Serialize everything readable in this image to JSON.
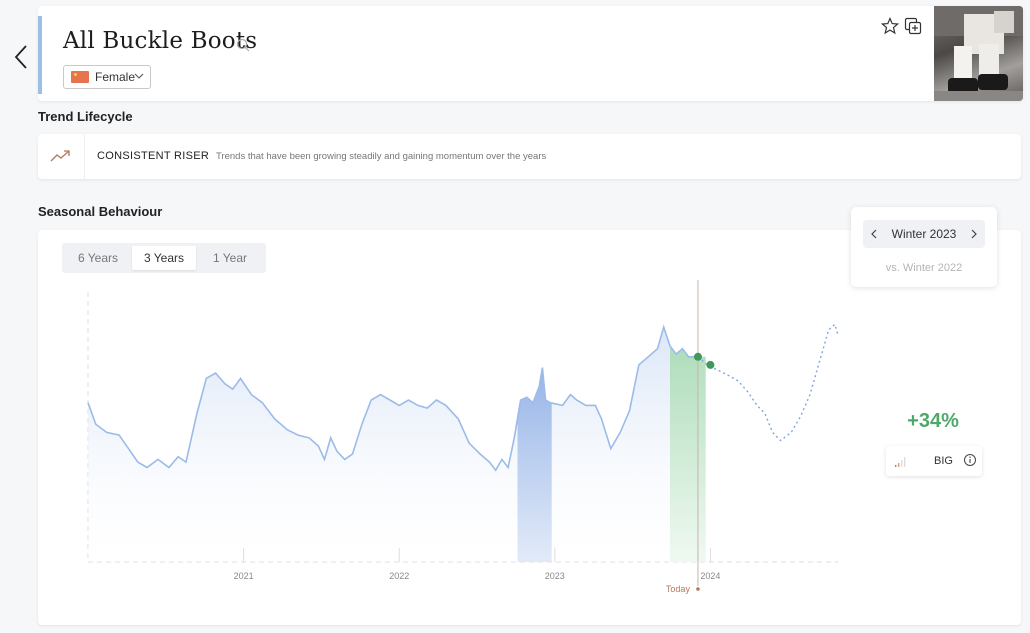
{
  "header": {
    "title": "All Buckle Boots",
    "gender": "Female"
  },
  "lifecycle": {
    "section_title": "Trend Lifecycle",
    "name": "CONSISTENT RISER",
    "description": "Trends that have been growing steadily and gaining momentum over the years"
  },
  "seasonal": {
    "section_title": "Seasonal Behaviour",
    "tabs": [
      "6 Years",
      "3 Years",
      "1 Year"
    ],
    "active_tab": "3 Years",
    "season": "Winter 2023",
    "compare": "vs. Winter 2022",
    "growth": "+34%",
    "size_label": "BIG"
  },
  "colors": {
    "actual_line": "#9cbbe8",
    "forecast_line": "#7fa6e0",
    "highlight_blue": "#9bb8ea",
    "highlight_green": "#b9e3c2",
    "growth_green": "#4ea969",
    "today_marker": "#b07a5a"
  },
  "chart_data": {
    "type": "area",
    "x_unit": "year",
    "x_ticks": [
      "2021",
      "2022",
      "2023",
      "2024"
    ],
    "today_label": "Today",
    "today_x": 2023.92,
    "xlim": [
      2020.0,
      2024.82
    ],
    "ylim": [
      0,
      100
    ],
    "series": [
      {
        "kind": "actual",
        "points": [
          [
            2020.0,
            59
          ],
          [
            2020.05,
            51
          ],
          [
            2020.12,
            48
          ],
          [
            2020.2,
            47
          ],
          [
            2020.26,
            42
          ],
          [
            2020.32,
            37
          ],
          [
            2020.38,
            35
          ],
          [
            2020.45,
            38
          ],
          [
            2020.52,
            35
          ],
          [
            2020.58,
            39
          ],
          [
            2020.63,
            37
          ],
          [
            2020.7,
            55
          ],
          [
            2020.76,
            68
          ],
          [
            2020.82,
            70
          ],
          [
            2020.88,
            66
          ],
          [
            2020.93,
            64
          ],
          [
            2020.98,
            68
          ],
          [
            2021.05,
            62
          ],
          [
            2021.12,
            59
          ],
          [
            2021.2,
            53
          ],
          [
            2021.28,
            49
          ],
          [
            2021.35,
            47
          ],
          [
            2021.42,
            46
          ],
          [
            2021.48,
            43
          ],
          [
            2021.52,
            38
          ],
          [
            2021.56,
            46
          ],
          [
            2021.6,
            41
          ],
          [
            2021.65,
            38
          ],
          [
            2021.7,
            40
          ],
          [
            2021.76,
            51
          ],
          [
            2021.82,
            60
          ],
          [
            2021.88,
            62
          ],
          [
            2021.94,
            60
          ],
          [
            2022.0,
            58
          ],
          [
            2022.06,
            60
          ],
          [
            2022.12,
            58
          ],
          [
            2022.18,
            57
          ],
          [
            2022.24,
            60
          ],
          [
            2022.3,
            58
          ],
          [
            2022.38,
            53
          ],
          [
            2022.45,
            44
          ],
          [
            2022.52,
            40
          ],
          [
            2022.58,
            37
          ],
          [
            2022.62,
            34
          ],
          [
            2022.66,
            38
          ],
          [
            2022.7,
            35
          ],
          [
            2022.74,
            46
          ],
          [
            2022.78,
            60
          ],
          [
            2022.82,
            61
          ],
          [
            2022.86,
            59
          ],
          [
            2022.9,
            65
          ],
          [
            2022.92,
            72
          ],
          [
            2022.94,
            60
          ],
          [
            2022.97,
            59
          ],
          [
            2023.05,
            58
          ],
          [
            2023.1,
            62
          ],
          [
            2023.14,
            60
          ],
          [
            2023.2,
            58
          ],
          [
            2023.26,
            58
          ],
          [
            2023.3,
            53
          ],
          [
            2023.36,
            42
          ],
          [
            2023.42,
            48
          ],
          [
            2023.48,
            56
          ],
          [
            2023.54,
            73
          ],
          [
            2023.6,
            76
          ],
          [
            2023.66,
            79
          ],
          [
            2023.7,
            87
          ],
          [
            2023.74,
            80
          ],
          [
            2023.78,
            77
          ],
          [
            2023.82,
            79
          ],
          [
            2023.86,
            76
          ],
          [
            2023.92,
            76
          ]
        ]
      },
      {
        "kind": "forecast",
        "points": [
          [
            2023.92,
            76
          ],
          [
            2023.98,
            73
          ],
          [
            2024.05,
            71
          ],
          [
            2024.12,
            69
          ],
          [
            2024.18,
            67
          ],
          [
            2024.24,
            63
          ],
          [
            2024.3,
            58
          ],
          [
            2024.35,
            55
          ],
          [
            2024.4,
            48
          ],
          [
            2024.45,
            45
          ],
          [
            2024.52,
            48
          ],
          [
            2024.58,
            54
          ],
          [
            2024.64,
            62
          ],
          [
            2024.7,
            74
          ],
          [
            2024.76,
            86
          ],
          [
            2024.8,
            88
          ],
          [
            2024.82,
            84
          ]
        ]
      }
    ],
    "highlight_ranges": [
      {
        "from": 2022.76,
        "to": 2022.98,
        "color": "blue"
      },
      {
        "from": 2023.74,
        "to": 2023.97,
        "color": "green"
      }
    ],
    "markers": [
      {
        "x": 2023.92,
        "y": 76
      },
      {
        "x": 2024.0,
        "y": 73
      }
    ]
  }
}
